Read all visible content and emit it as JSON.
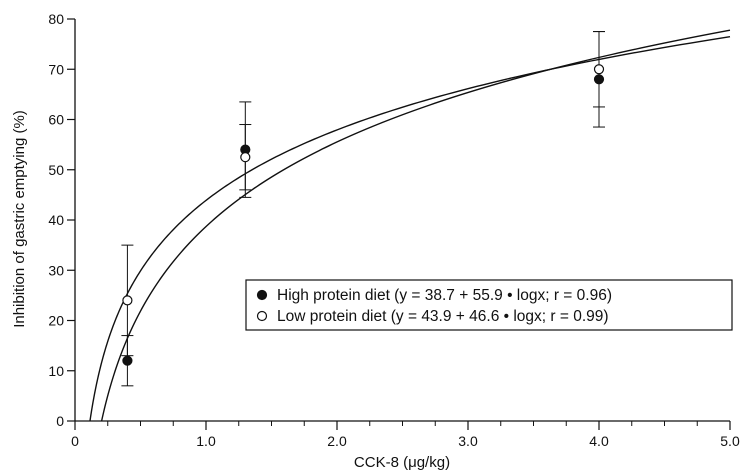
{
  "chart_data": {
    "type": "scatter",
    "title": "",
    "xlabel": "CCK-8 (μg/kg)",
    "ylabel": "Inhibition of gastric emptying (%)",
    "xlim": [
      0,
      5.0
    ],
    "ylim": [
      0,
      80
    ],
    "x_ticks": [
      0,
      1.0,
      2.0,
      3.0,
      4.0,
      5.0
    ],
    "x_tick_labels": [
      "0",
      "1.0",
      "2.0",
      "3.0",
      "4.0",
      "5.0"
    ],
    "x_minor_step": 0.25,
    "y_ticks": [
      0,
      10,
      20,
      30,
      40,
      50,
      60,
      70,
      80
    ],
    "y_tick_labels": [
      "0",
      "10",
      "20",
      "30",
      "40",
      "50",
      "60",
      "70",
      "80"
    ],
    "grid": false,
    "legend_position": "center-right",
    "series": [
      {
        "name": "High protein diet",
        "legend_label": "High protein diet (y = 38.7 + 55.9 • logx; r = 0.96)",
        "marker": "filled-circle",
        "color": "#111111",
        "points": [
          {
            "x": 0.4,
            "y": 12,
            "err": 5
          },
          {
            "x": 1.3,
            "y": 54,
            "err": 9.5
          },
          {
            "x": 4.0,
            "y": 68,
            "err": 9.5
          }
        ],
        "fit": {
          "intercept": 38.7,
          "slope": 55.9,
          "log": "log10"
        }
      },
      {
        "name": "Low protein diet",
        "legend_label": "Low protein diet (y = 43.9 + 46.6 • logx; r = 0.99)",
        "marker": "open-circle",
        "color": "#111111",
        "points": [
          {
            "x": 0.4,
            "y": 24,
            "err": 11
          },
          {
            "x": 1.3,
            "y": 52.5,
            "err": 6.5
          },
          {
            "x": 4.0,
            "y": 70,
            "err": 7.5
          }
        ],
        "fit": {
          "intercept": 43.9,
          "slope": 46.6,
          "log": "log10"
        }
      }
    ]
  }
}
